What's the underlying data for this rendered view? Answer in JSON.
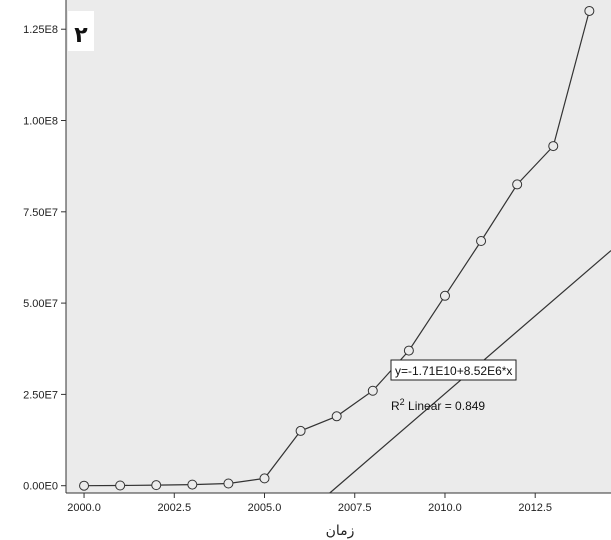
{
  "panel_label": "۲",
  "chart_data": {
    "type": "scatter",
    "title": "",
    "xlabel": "زمان",
    "ylabel": "",
    "xlim": [
      1999.5,
      2014.6
    ],
    "ylim": [
      -2000000,
      133000000
    ],
    "x_ticks": [
      2000.0,
      2002.5,
      2005.0,
      2007.5,
      2010.0,
      2012.5
    ],
    "x_tick_labels": [
      "2000.0",
      "2002.5",
      "2005.0",
      "2007.5",
      "2010.0",
      "2012.5"
    ],
    "y_ticks": [
      0,
      25000000,
      50000000,
      75000000,
      100000000,
      125000000
    ],
    "y_tick_labels": [
      "0.00E0",
      "2.50E7",
      "5.00E7",
      "7.50E7",
      "1.00E8",
      "1.25E8"
    ],
    "series": [
      {
        "x": [
          2000,
          2001,
          2002,
          2003,
          2004,
          2005,
          2006,
          2007,
          2008,
          2009,
          2010,
          2011,
          2012,
          2013,
          2014
        ],
        "values": [
          0,
          50000,
          150000,
          300000,
          600000,
          2000000,
          15000000,
          19000000,
          26000000,
          37000000,
          52000000,
          67000000,
          82500000,
          93000000,
          130000000
        ],
        "marker": "open-circle",
        "connected": true
      }
    ],
    "fit_line": {
      "type": "linear",
      "intercept": -17100000000,
      "slope": 8520000,
      "equation_label": "y=-1.71E10+8.52E6*x",
      "r2_label": "R",
      "r2_sup": "2",
      "r2_suffix": " Linear = 0.849"
    },
    "grid": false,
    "legend": "none",
    "colors": {
      "plot_background": "#ebebeb",
      "line": "#333333",
      "marker_fill": "#ebebeb"
    }
  }
}
